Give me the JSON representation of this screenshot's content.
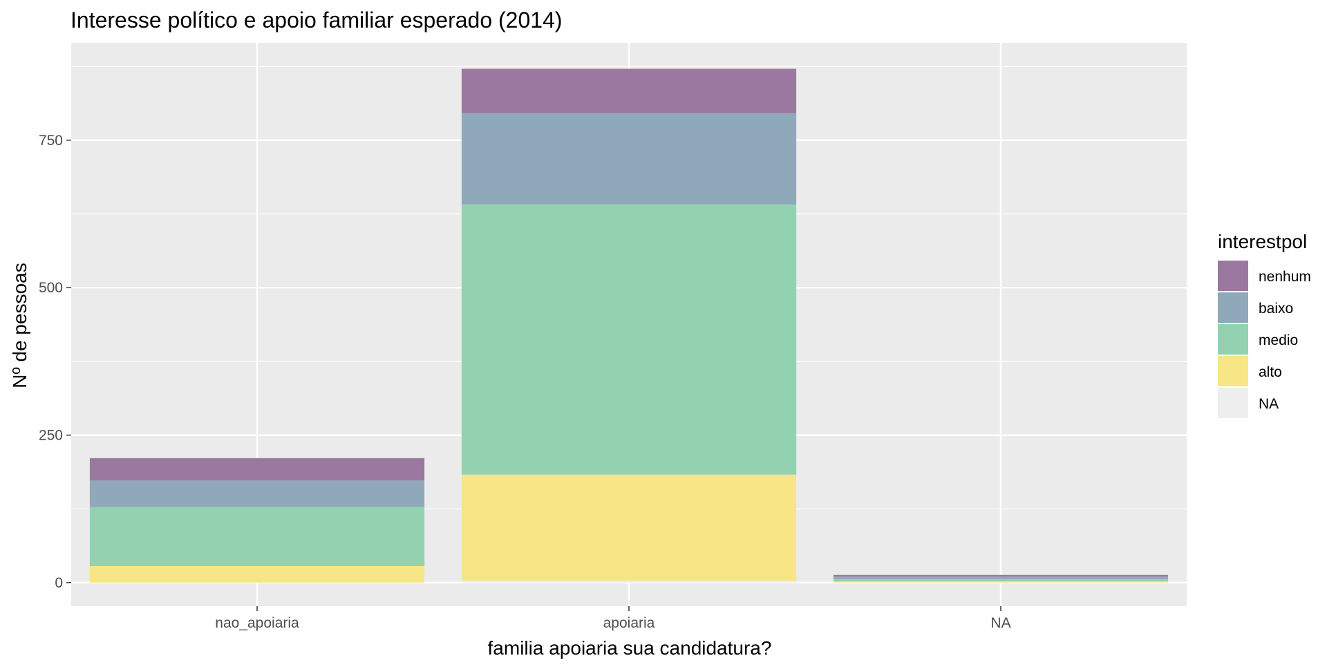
{
  "chart_data": {
    "type": "bar",
    "stacked": true,
    "title": "Interesse político e apoio familiar esperado (2014)",
    "xlabel": "familia apoiaria sua candidatura?",
    "ylabel": "Nº de pessoas",
    "categories": [
      "nao_apoiaria",
      "apoiaria",
      "NA"
    ],
    "ylim": [
      -40,
      915
    ],
    "yticks": [
      0,
      250,
      500,
      750
    ],
    "grid": true,
    "legend": {
      "title": "interestpol",
      "position": "right",
      "entries": [
        "nenhum",
        "baixo",
        "medio",
        "alto",
        "NA"
      ]
    },
    "series": [
      {
        "name": "NA",
        "values": [
          0,
          3,
          0
        ],
        "color": "#eeeeee"
      },
      {
        "name": "alto",
        "values": [
          28,
          180,
          2
        ],
        "color": "#f6e685"
      },
      {
        "name": "medio",
        "values": [
          100,
          458,
          4
        ],
        "color": "#92d2b1"
      },
      {
        "name": "baixo",
        "values": [
          45,
          155,
          4
        ],
        "color": "#8fa9bb"
      },
      {
        "name": "nenhum",
        "values": [
          38,
          75,
          3
        ],
        "color": "#9b789f"
      }
    ],
    "panel_color": "#ebebeb",
    "grid_color": "#ffffff"
  }
}
